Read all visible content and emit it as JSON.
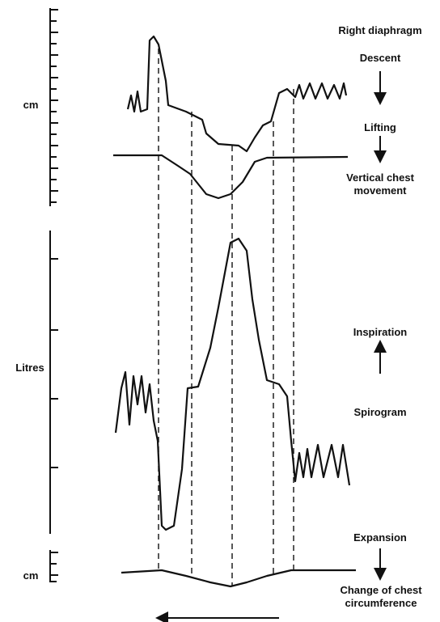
{
  "axes": [
    {
      "unit": "cm"
    },
    {
      "unit": "Litres"
    },
    {
      "unit": "cm"
    }
  ],
  "traces": [
    {
      "name": "Right diaphragm",
      "direction": "Descent"
    },
    {
      "name": "Vertical chest movement",
      "direction": "Lifting"
    },
    {
      "name": "Spirogram",
      "direction": "Inspiration"
    },
    {
      "name": "Change of chest circumference",
      "direction": "Expansion"
    }
  ]
}
